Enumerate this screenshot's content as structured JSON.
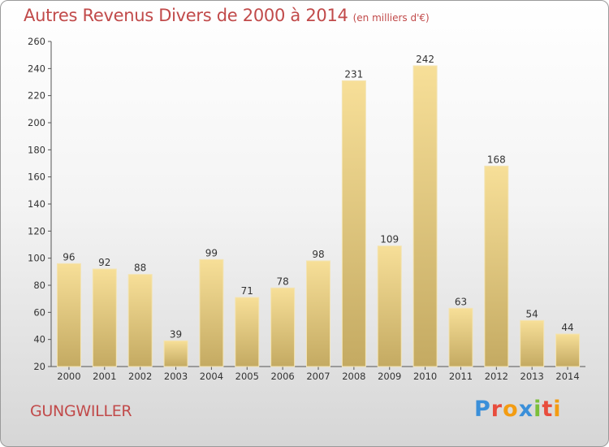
{
  "header": {
    "title": "Autres Revenus Divers de 2000 à 2014",
    "unit": "(en milliers d'€)"
  },
  "footer": {
    "place": "GUNGWILLER",
    "brand": "Proxiti",
    "brand_colors": [
      "#3a8fd9",
      "#e84c3d",
      "#f39c12",
      "#3a8fd9",
      "#7bbf3a",
      "#e84c3d",
      "#f39c12"
    ]
  },
  "chart_data": {
    "type": "bar",
    "categories": [
      "2000",
      "2001",
      "2002",
      "2003",
      "2004",
      "2005",
      "2006",
      "2007",
      "2008",
      "2009",
      "2010",
      "2011",
      "2012",
      "2013",
      "2014"
    ],
    "values": [
      96,
      92,
      88,
      39,
      99,
      71,
      78,
      98,
      231,
      109,
      242,
      63,
      168,
      54,
      44
    ],
    "ylim": [
      20,
      260
    ],
    "yticks": [
      20,
      40,
      60,
      80,
      100,
      120,
      140,
      160,
      180,
      200,
      220,
      240,
      260
    ],
    "grid": false,
    "bar_color": "#e8cc7e"
  }
}
